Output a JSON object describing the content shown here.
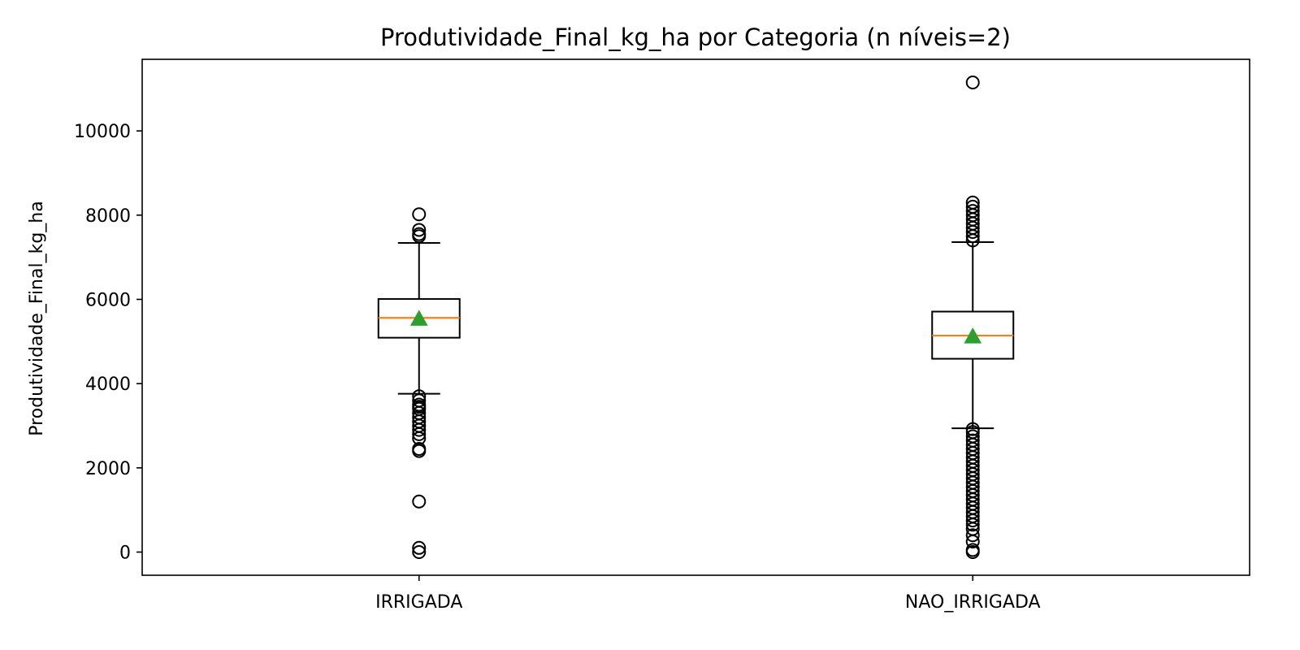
{
  "chart_data": {
    "type": "box",
    "title": "Produtividade_Final_kg_ha por Categoria (n níveis=2)",
    "xlabel": "",
    "ylabel": "Produtividade_Final_kg_ha",
    "ylim": [
      -550,
      11700
    ],
    "yticks": [
      0,
      2000,
      4000,
      6000,
      8000,
      10000
    ],
    "categories": [
      "IRRIGADA",
      "NAO_IRRIGADA"
    ],
    "boxes": [
      {
        "category": "IRRIGADA",
        "whisker_low": 3760,
        "q1": 5090,
        "median": 5560,
        "q3": 6010,
        "whisker_high": 7340,
        "mean": 5540,
        "outliers": [
          0,
          100,
          1200,
          2400,
          2450,
          2700,
          2800,
          2900,
          3000,
          3100,
          3200,
          3300,
          3400,
          3450,
          3500,
          3600,
          3700,
          7500,
          7550,
          7650,
          8020
        ]
      },
      {
        "category": "NAO_IRRIGADA",
        "whisker_low": 2940,
        "q1": 4590,
        "median": 5140,
        "q3": 5710,
        "whisker_high": 7360,
        "mean": 5120,
        "outliers": [
          0,
          50,
          250,
          400,
          550,
          650,
          750,
          850,
          950,
          1050,
          1150,
          1250,
          1350,
          1450,
          1550,
          1650,
          1750,
          1850,
          1950,
          2050,
          2150,
          2250,
          2350,
          2450,
          2550,
          2650,
          2750,
          2850,
          2920,
          7400,
          7500,
          7600,
          7700,
          7800,
          7900,
          8000,
          8100,
          8200,
          8300,
          11150
        ]
      }
    ],
    "colors": {
      "box": "#000000",
      "median": "#ff7f0e",
      "mean": "#2ca02c",
      "outlier": "#000000"
    },
    "grid": false,
    "legend": "none"
  }
}
